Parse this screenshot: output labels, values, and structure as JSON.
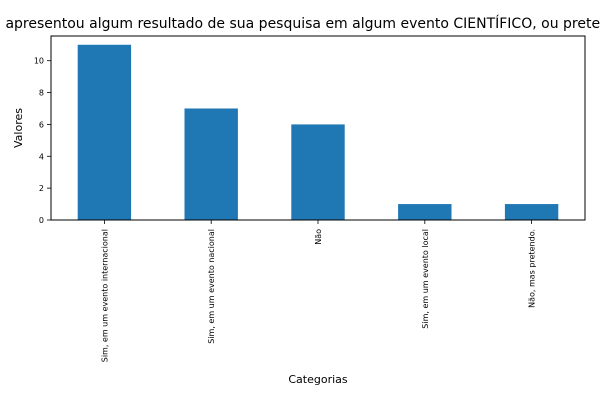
{
  "chart_data": {
    "type": "bar",
    "title": "Você já apresentou algum resultado de sua pesquisa em algum evento CIENTÍFICO, ou pretende fazê-lo?",
    "xlabel": "Categorias",
    "ylabel": "Valores",
    "categories": [
      "Sim, em um evento internacional",
      "Sim, em um evento nacional",
      "Não",
      "Sim, em um evento local",
      "Não, mas pretendo."
    ],
    "values": [
      11,
      7,
      6,
      1,
      1
    ],
    "ylim": [
      0,
      11.55
    ],
    "yticks": [
      0,
      2,
      4,
      6,
      8,
      10
    ],
    "grid": false,
    "legend": "none",
    "bar_color": "#1f77b4"
  }
}
